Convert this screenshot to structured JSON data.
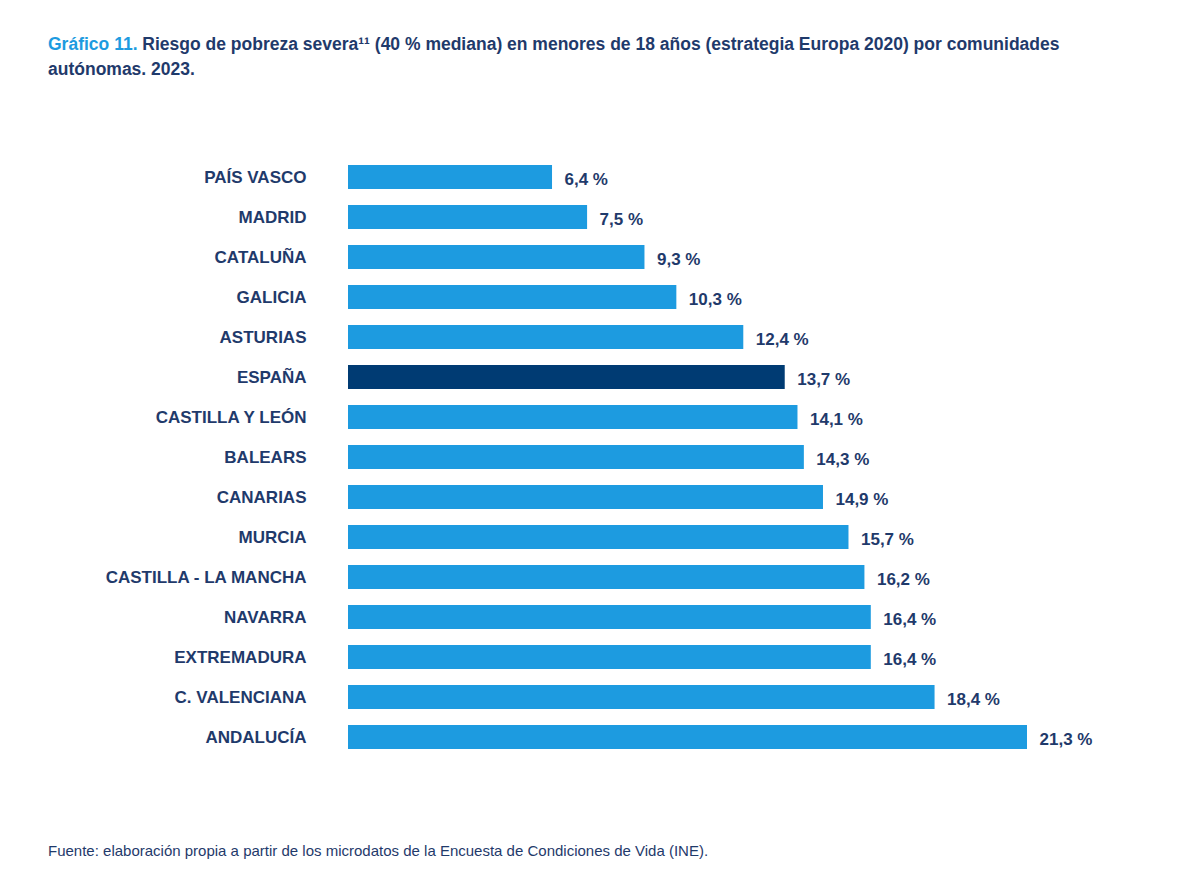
{
  "chart_data": {
    "type": "bar",
    "orientation": "horizontal",
    "title": "Gráfico 11. Riesgo de pobreza severa¹¹ (40 % mediana) en menores de 18 años (estrategia Europa 2020) por comunidades autónomas. 2023.",
    "caption": "Fuente: elaboración propia a partir de los microdatos de la Encuesta de Condiciones de Vida (INE).",
    "categories": [
      "PAÍS VASCO",
      "MADRID",
      "CATALUÑA",
      "GALICIA",
      "ASTURIAS",
      "ESPAÑA",
      "CASTILLA Y LEÓN",
      "BALEARS",
      "CANARIAS",
      "MURCIA",
      "CASTILLA - LA MANCHA",
      "NAVARRA",
      "EXTREMADURA",
      "C. VALENCIANA",
      "ANDALUCÍA"
    ],
    "values": [
      6.4,
      7.5,
      9.3,
      10.3,
      12.4,
      13.7,
      14.1,
      14.3,
      14.9,
      15.7,
      16.2,
      16.4,
      16.4,
      18.4,
      21.3
    ],
    "value_labels": [
      "6,4 %",
      "7,5 %",
      "9,3 %",
      "10,3 %",
      "12,4 %",
      "13,7 %",
      "14,1 %",
      "14,3 %",
      "14,9 %",
      "15,7 %",
      "16,2 %",
      "16,4 %",
      "16,4 %",
      "18,4 %",
      "21,3 %"
    ],
    "colors": [
      "#1d9be0",
      "#1d9be0",
      "#1d9be0",
      "#1d9be0",
      "#1d9be0",
      "#003b73",
      "#1d9be0",
      "#1d9be0",
      "#1d9be0",
      "#1d9be0",
      "#1d9be0",
      "#1d9be0",
      "#1d9be0",
      "#1d9be0",
      "#1d9be0"
    ],
    "data_labels": true,
    "tick_labels": "y",
    "grid": false
  }
}
